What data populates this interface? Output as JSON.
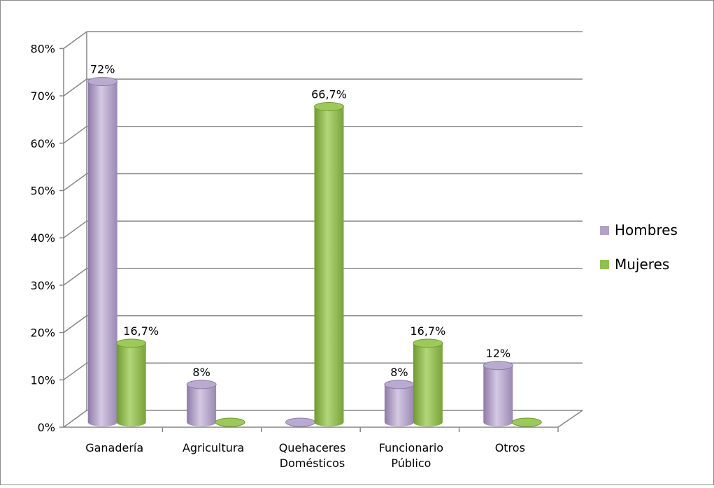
{
  "chart_data": {
    "type": "bar",
    "style": "3d-cylinder",
    "categories": [
      [
        "Ganadería"
      ],
      [
        "Agricultura"
      ],
      [
        "Quehaceres",
        "Domésticos"
      ],
      [
        "Funcionario",
        "Público"
      ],
      [
        "Otros"
      ]
    ],
    "series": [
      {
        "name": "Hombres",
        "color": "#b2a2c7",
        "values": [
          72,
          8,
          0,
          8,
          12
        ],
        "labels": [
          "72%",
          "8%",
          "",
          "8%",
          "12%"
        ]
      },
      {
        "name": "Mujeres",
        "color": "#92c050",
        "values": [
          16.7,
          0,
          66.7,
          16.7,
          0
        ],
        "labels": [
          "16,7%",
          "",
          "66,7%",
          "16,7%",
          ""
        ]
      }
    ],
    "yticks": [
      "0%",
      "10%",
      "20%",
      "30%",
      "40%",
      "50%",
      "60%",
      "70%",
      "80%"
    ],
    "ylim": [
      0,
      80
    ],
    "ystep": 10,
    "grid": true,
    "legend": "right"
  }
}
